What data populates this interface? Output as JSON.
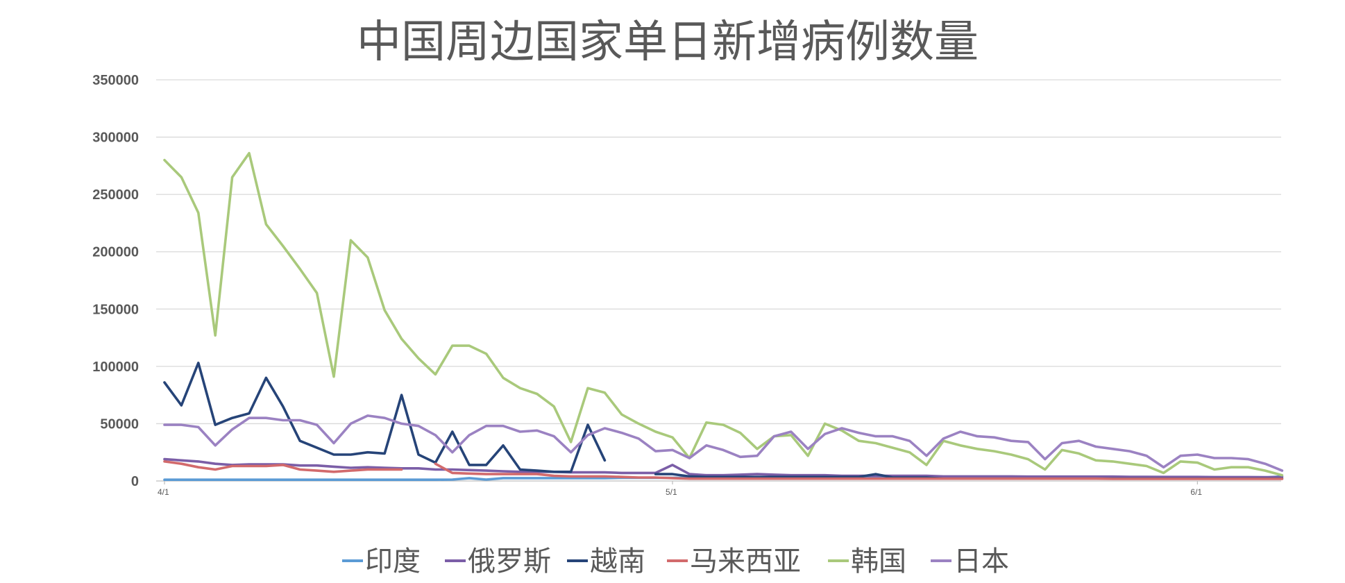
{
  "chart_data": {
    "type": "line",
    "title": "中国周边国家单日新增病例数量",
    "xlabel": "",
    "ylabel": "",
    "ylim": [
      0,
      350000
    ],
    "yticks": [
      "350000",
      "300000",
      "250000",
      "200000",
      "150000",
      "100000",
      "50000",
      "0"
    ],
    "xticks": [
      {
        "label": "4/1",
        "day": 0
      },
      {
        "label": "5/1",
        "day": 30
      },
      {
        "label": "6/1",
        "day": 61
      }
    ],
    "x_days": [
      0,
      1,
      2,
      3,
      4,
      5,
      6,
      7,
      8,
      9,
      10,
      11,
      12,
      13,
      14,
      15,
      16,
      17,
      18,
      19,
      20,
      21,
      22,
      23,
      24,
      25,
      26,
      27,
      28,
      29,
      30,
      31,
      32,
      33,
      34,
      35,
      36,
      37,
      38,
      39,
      40,
      41,
      42,
      43,
      44,
      45,
      46,
      47,
      48,
      49,
      50,
      51,
      52,
      53,
      54,
      55,
      56,
      57,
      58,
      59,
      60,
      61,
      62,
      63,
      64,
      65,
      66
    ],
    "grid": true,
    "legend_position": "bottom",
    "series": [
      {
        "name": "印度",
        "color": "#5b9bd5",
        "values": [
          1100,
          1100,
          1100,
          1100,
          1100,
          1100,
          1100,
          1100,
          1100,
          1100,
          1100,
          1100,
          1100,
          1100,
          1100,
          1100,
          1100,
          1200,
          2500,
          1200,
          2500,
          2500,
          2500,
          2500,
          2500,
          2500,
          2500,
          2800,
          2800,
          2800,
          2800,
          2800,
          2800,
          2800,
          2800,
          2800,
          2800,
          2800,
          2800,
          2800,
          2800,
          2800,
          2800,
          2800,
          2800,
          2800,
          2800,
          2800,
          2800,
          2800,
          2800,
          2800,
          2800,
          2800,
          2800,
          2800,
          2800,
          2800,
          2800,
          2800,
          2800,
          2800,
          2800,
          2800,
          2800,
          3000,
          4000
        ]
      },
      {
        "name": "俄罗斯",
        "color": "#7b5ea7",
        "values": [
          19000,
          18000,
          17000,
          15000,
          14000,
          14500,
          14500,
          14500,
          13500,
          13500,
          12500,
          11500,
          12000,
          11500,
          11000,
          11000,
          10000,
          10000,
          9500,
          9000,
          8500,
          8000,
          8000,
          8000,
          7500,
          7500,
          7500,
          7000,
          7000,
          7000,
          14000,
          6000,
          5000,
          5000,
          5500,
          6000,
          5500,
          5000,
          5000,
          5000,
          4500,
          4500,
          4500,
          4500,
          4500,
          4500,
          4000,
          4000,
          4000,
          4000,
          4000,
          3800,
          3800,
          3800,
          3800,
          3800,
          3800,
          3600,
          3600,
          3500,
          3500,
          3500,
          3400,
          3400,
          3400,
          3300,
          3300
        ]
      },
      {
        "name": "越南",
        "color": "#264478",
        "values": [
          86000,
          66000,
          103000,
          49000,
          55000,
          59000,
          90000,
          65000,
          35000,
          29000,
          23000,
          23000,
          25000,
          24000,
          75000,
          23000,
          16000,
          43000,
          14000,
          14000,
          31000,
          10000,
          9000,
          8000,
          8000,
          49000,
          18000,
          null,
          null,
          6000,
          6000,
          4000,
          3500,
          3500,
          3500,
          3500,
          3500,
          3500,
          3500,
          3500,
          3500,
          3500,
          6000,
          3000,
          3000,
          3000,
          2000,
          2000,
          2000,
          2000,
          2000,
          2000,
          2000,
          2000,
          2000,
          2000,
          2000,
          2000,
          2000,
          2000,
          2000,
          2000,
          2000,
          2000,
          2000,
          2000,
          2000
        ]
      },
      {
        "name": "马来西亚",
        "color": "#d26a6c",
        "values": [
          17000,
          15000,
          12000,
          10000,
          13000,
          13000,
          13000,
          14000,
          10000,
          9000,
          8000,
          9000,
          10000,
          10000,
          10000,
          null,
          15000,
          7000,
          6500,
          6000,
          6000,
          6000,
          6000,
          4500,
          4000,
          4000,
          4000,
          3500,
          3000,
          3000,
          2500,
          2000,
          2000,
          2000,
          2000,
          2000,
          2000,
          2000,
          2000,
          2000,
          2000,
          2000,
          2000,
          2000,
          2000,
          2000,
          2000,
          2000,
          2000,
          2000,
          2000,
          2000,
          2000,
          2000,
          2000,
          2000,
          1800,
          1800,
          1800,
          1800,
          1800,
          1800,
          1800,
          1800,
          1800,
          1800,
          1800
        ]
      },
      {
        "name": "韩国",
        "color": "#a9c97b",
        "values": [
          280000,
          265000,
          234000,
          127000,
          265000,
          286000,
          224000,
          205000,
          185000,
          164000,
          91000,
          210000,
          195000,
          149000,
          124000,
          107000,
          93000,
          118000,
          118000,
          111000,
          90000,
          81000,
          76000,
          65000,
          34000,
          81000,
          77000,
          58000,
          50000,
          43000,
          38000,
          20000,
          51000,
          49000,
          42000,
          28000,
          39000,
          40000,
          22000,
          50000,
          44000,
          35000,
          33000,
          29000,
          25000,
          14000,
          35000,
          31000,
          28000,
          26000,
          23000,
          19000,
          10000,
          27000,
          24000,
          18000,
          17000,
          15000,
          13000,
          7000,
          17000,
          16000,
          10000,
          12000,
          12000,
          9000,
          5000
        ]
      },
      {
        "name": "日本",
        "color": "#9b82c2",
        "values": [
          49000,
          49000,
          47000,
          31000,
          45000,
          55000,
          55000,
          53000,
          53000,
          49000,
          33000,
          50000,
          57000,
          55000,
          50000,
          48000,
          40000,
          25000,
          40000,
          48000,
          48000,
          43000,
          44000,
          39000,
          25000,
          40000,
          46000,
          42000,
          37000,
          26000,
          27000,
          20000,
          31000,
          27000,
          21000,
          22000,
          39000,
          43000,
          28000,
          41000,
          46000,
          42000,
          39000,
          39000,
          35000,
          22000,
          37000,
          43000,
          39000,
          38000,
          35000,
          34000,
          19000,
          33000,
          35000,
          30000,
          28000,
          26000,
          22000,
          12000,
          22000,
          23000,
          20000,
          20000,
          19000,
          15000,
          9000
        ]
      }
    ]
  }
}
